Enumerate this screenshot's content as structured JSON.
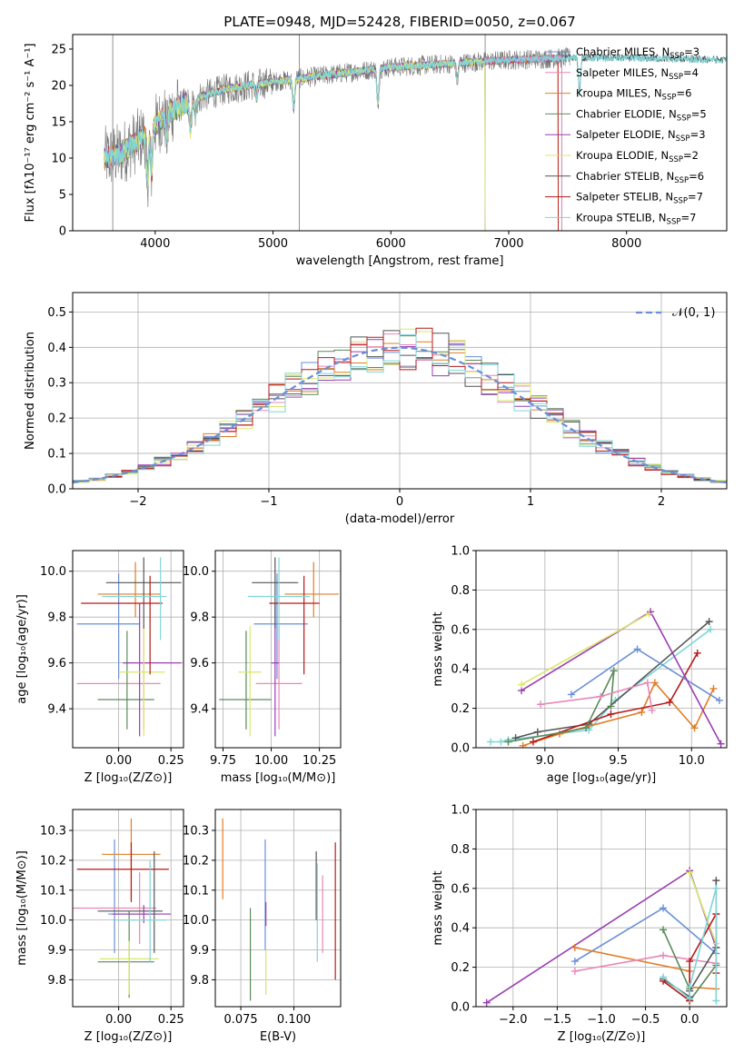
{
  "figure_title": "PLATE=0948, MJD=52428, FIBERID=0050, z=0.067",
  "colors": {
    "chabrier_miles": "#6a8fd8",
    "salpeter_miles": "#e887b8",
    "kroupa_miles": "#e27c24",
    "chabrier_elodie": "#5a8a5a",
    "salpeter_elodie": "#9b3cb2",
    "kroupa_elodie": "#d8e86a",
    "chabrier_stelib": "#555555",
    "salpeter_stelib": "#b81818",
    "kroupa_stelib": "#7fd5d8",
    "data": "#777777",
    "normal": "#6a8fd8"
  },
  "chart_data": [
    {
      "id": "spectrum",
      "type": "line",
      "xlabel": "wavelength [Angstrom, rest frame]",
      "ylabel": "Flux [fλ10⁻¹⁷ erg cm⁻² s⁻¹ A⁻¹]",
      "xlim": [
        3300,
        8850
      ],
      "ylim": [
        0,
        27
      ],
      "xticks": [
        4000,
        5000,
        6000,
        7000,
        8000
      ],
      "yticks": [
        0,
        5,
        10,
        15,
        20,
        25
      ],
      "legend_position": "right",
      "legend": [
        {
          "label": "Chabrier MILES, N",
          "n": "3",
          "color": "chabrier_miles"
        },
        {
          "label": "Salpeter MILES, N",
          "n": "4",
          "color": "salpeter_miles"
        },
        {
          "label": "Kroupa MILES, N",
          "n": "6",
          "color": "kroupa_miles"
        },
        {
          "label": "Chabrier ELODIE, N",
          "n": "5",
          "color": "chabrier_elodie"
        },
        {
          "label": "Salpeter ELODIE, N",
          "n": "3",
          "color": "salpeter_elodie"
        },
        {
          "label": "Kroupa ELODIE, N",
          "n": "2",
          "color": "kroupa_elodie"
        },
        {
          "label": "Chabrier STELIB, N",
          "n": "6",
          "color": "chabrier_stelib"
        },
        {
          "label": "Salpeter STELIB, N",
          "n": "7",
          "color": "salpeter_stelib"
        },
        {
          "label": "Kroupa STELIB, N",
          "n": "7",
          "color": "kroupa_stelib"
        }
      ],
      "legend_sub": "SSP",
      "continuum": [
        [
          3570,
          10
        ],
        [
          3700,
          10.5
        ],
        [
          3900,
          13
        ],
        [
          4100,
          16
        ],
        [
          4300,
          18
        ],
        [
          4600,
          19.5
        ],
        [
          5000,
          20.5
        ],
        [
          5500,
          21.5
        ],
        [
          6000,
          22.5
        ],
        [
          6500,
          23
        ],
        [
          7000,
          23.5
        ],
        [
          7500,
          23.8
        ],
        [
          8000,
          23.8
        ],
        [
          8850,
          23.5
        ]
      ],
      "models_end": {
        "chabrier_miles": 7450,
        "salpeter_miles": 7450,
        "kroupa_miles": 7420,
        "chabrier_elodie": 6800,
        "salpeter_elodie": 6800,
        "kroupa_elodie": 6800,
        "chabrier_stelib": 8850,
        "salpeter_stelib": 7420,
        "kroupa_stelib": 8850
      }
    },
    {
      "id": "residuals",
      "type": "step",
      "xlabel": "(data-model)/error",
      "ylabel": "Normed distribution",
      "xlim": [
        -2.5,
        2.5
      ],
      "ylim": [
        0,
        0.555
      ],
      "xticks": [
        -2,
        -1,
        0,
        1,
        2
      ],
      "yticks": [
        0.0,
        0.1,
        0.2,
        0.3,
        0.4,
        0.5
      ],
      "legend": "𝒩(0, 1)",
      "legend_position": "top-right",
      "normal": {
        "mean": 0,
        "sigma": 1
      }
    },
    {
      "id": "age_vs_Z",
      "type": "errorbar",
      "xlabel": "Z [log₁₀(Z/Z⊙)]",
      "ylabel": "age  [log₁₀(age/yr)]",
      "xlim": [
        -0.22,
        0.31
      ],
      "ylim": [
        9.23,
        10.09
      ],
      "xticks": [
        0.0,
        0.25
      ],
      "yticks": [
        9.4,
        9.6,
        9.8,
        10.0
      ],
      "points": [
        {
          "s": "chabrier_miles",
          "x": 0.0,
          "xerr": [
            0.2,
            0.1
          ],
          "y": 9.77,
          "yerr": [
            0.24,
            0.22
          ]
        },
        {
          "s": "salpeter_miles",
          "x": 0.12,
          "xerr": [
            0.32,
            0.08
          ],
          "y": 9.51,
          "yerr": [
            0.2,
            0.25
          ]
        },
        {
          "s": "kroupa_miles",
          "x": 0.08,
          "xerr": [
            0.18,
            0.12
          ],
          "y": 9.9,
          "yerr": [
            0.1,
            0.14
          ]
        },
        {
          "s": "chabrier_elodie",
          "x": 0.04,
          "xerr": [
            0.14,
            0.13
          ],
          "y": 9.44,
          "yerr": [
            0.13,
            0.3
          ]
        },
        {
          "s": "salpeter_elodie",
          "x": 0.1,
          "xerr": [
            0.08,
            0.2
          ],
          "y": 9.6,
          "yerr": [
            0.32,
            0.26
          ]
        },
        {
          "s": "kroupa_elodie",
          "x": 0.12,
          "xerr": [
            0.12,
            0.1
          ],
          "y": 9.56,
          "yerr": [
            0.28,
            0.2
          ]
        },
        {
          "s": "chabrier_stelib",
          "x": 0.12,
          "xerr": [
            0.18,
            0.18
          ],
          "y": 9.95,
          "yerr": [
            0.2,
            0.11
          ]
        },
        {
          "s": "salpeter_stelib",
          "x": 0.15,
          "xerr": [
            0.33,
            0.06
          ],
          "y": 9.86,
          "yerr": [
            0.31,
            0.12
          ]
        },
        {
          "s": "kroupa_stelib",
          "x": 0.2,
          "xerr": [
            0.28,
            0.03
          ],
          "y": 9.89,
          "yerr": [
            0.19,
            0.17
          ]
        }
      ]
    },
    {
      "id": "age_vs_mass",
      "type": "errorbar",
      "xlabel": "mass [log₁₀(M/M⊙)]",
      "ylabel": "",
      "xlim": [
        9.71,
        10.36
      ],
      "ylim": [
        9.23,
        10.09
      ],
      "xticks": [
        9.75,
        10.0,
        10.25
      ],
      "yticks": [
        9.4,
        9.6,
        9.8,
        10.0
      ],
      "points": [
        {
          "s": "chabrier_miles",
          "x": 10.03,
          "xerr": [
            0.12,
            0.16
          ],
          "y": 9.77,
          "yerr": [
            0.24,
            0.22
          ]
        },
        {
          "s": "salpeter_miles",
          "x": 10.04,
          "xerr": [
            0.12,
            0.12
          ],
          "y": 9.51,
          "yerr": [
            0.2,
            0.25
          ]
        },
        {
          "s": "kroupa_miles",
          "x": 10.22,
          "xerr": [
            0.15,
            0.13
          ],
          "y": 9.9,
          "yerr": [
            0.1,
            0.14
          ]
        },
        {
          "s": "chabrier_elodie",
          "x": 9.87,
          "xerr": [
            0.14,
            0.13
          ],
          "y": 9.44,
          "yerr": [
            0.13,
            0.3
          ]
        },
        {
          "s": "salpeter_elodie",
          "x": 10.02,
          "xerr": [
            0.02,
            0.02
          ],
          "y": 9.6,
          "yerr": [
            0.32,
            0.26
          ]
        },
        {
          "s": "kroupa_elodie",
          "x": 9.89,
          "xerr": [
            0.06,
            0.06
          ],
          "y": 9.56,
          "yerr": [
            0.28,
            0.2
          ]
        },
        {
          "s": "chabrier_stelib",
          "x": 10.02,
          "xerr": [
            0.12,
            0.12
          ],
          "y": 9.95,
          "yerr": [
            0.2,
            0.11
          ]
        },
        {
          "s": "salpeter_stelib",
          "x": 10.17,
          "xerr": [
            0.18,
            0.08
          ],
          "y": 9.86,
          "yerr": [
            0.31,
            0.12
          ]
        },
        {
          "s": "kroupa_stelib",
          "x": 10.04,
          "xerr": [
            0.16,
            0.16
          ],
          "y": 9.89,
          "yerr": [
            0.19,
            0.17
          ]
        }
      ]
    },
    {
      "id": "weight_vs_age",
      "type": "line",
      "xlabel": "age  [log₁₀(age/yr)]",
      "ylabel": "mass weight",
      "xlim": [
        8.53,
        10.24
      ],
      "ylim": [
        0.0,
        1.0
      ],
      "xticks": [
        9.0,
        9.5,
        10.0
      ],
      "yticks": [
        0.0,
        0.2,
        0.4,
        0.6,
        0.8,
        1.0
      ],
      "series": [
        {
          "s": "kroupa_stelib",
          "x": [
            8.63,
            8.7,
            8.75,
            9.3,
            9.48,
            10.13
          ],
          "y": [
            0.03,
            0.03,
            0.04,
            0.09,
            0.24,
            0.6
          ]
        },
        {
          "s": "chabrier_stelib",
          "x": [
            8.8,
            8.95,
            9.3,
            10.12
          ],
          "y": [
            0.05,
            0.08,
            0.12,
            0.64
          ]
        },
        {
          "s": "kroupa_miles",
          "x": [
            8.85,
            9.1,
            9.66,
            9.75,
            10.02,
            10.15
          ],
          "y": [
            0.01,
            0.07,
            0.18,
            0.33,
            0.1,
            0.3
          ]
        },
        {
          "s": "salpeter_stelib",
          "x": [
            8.92,
            9.45,
            9.85,
            10.04
          ],
          "y": [
            0.03,
            0.17,
            0.23,
            0.48
          ]
        },
        {
          "s": "chabrier_elodie",
          "x": [
            8.75,
            9.28,
            9.47,
            9.45
          ],
          "y": [
            0.03,
            0.1,
            0.39,
            0.21
          ]
        },
        {
          "s": "chabrier_miles",
          "x": [
            9.18,
            9.63,
            10.19
          ],
          "y": [
            0.27,
            0.5,
            0.24
          ]
        },
        {
          "s": "salpeter_miles",
          "x": [
            8.97,
            9.38,
            9.7,
            9.73
          ],
          "y": [
            0.22,
            0.26,
            0.33,
            0.19
          ]
        },
        {
          "s": "salpeter_elodie",
          "x": [
            8.84,
            9.72,
            10.2
          ],
          "y": [
            0.29,
            0.69,
            0.02
          ]
        },
        {
          "s": "kroupa_elodie",
          "x": [
            8.84,
            9.71
          ],
          "y": [
            0.32,
            0.68
          ]
        }
      ]
    },
    {
      "id": "mass_vs_Z",
      "type": "errorbar",
      "xlabel": "Z [log₁₀(Z/Z⊙)]",
      "ylabel": "mass [log₁₀(M/M⊙)]",
      "xlim": [
        -0.22,
        0.31
      ],
      "ylim": [
        9.71,
        10.37
      ],
      "xticks": [
        0.0,
        0.25
      ],
      "yticks": [
        9.8,
        9.9,
        10.0,
        10.1,
        10.2,
        10.3
      ],
      "points": [
        {
          "s": "chabrier_miles",
          "x": -0.02,
          "xerr": [
            0.03,
            0.2
          ],
          "y": 10.02,
          "yerr": [
            0.13,
            0.25
          ]
        },
        {
          "s": "salpeter_miles",
          "x": 0.1,
          "xerr": [
            0.32,
            0.08
          ],
          "y": 10.04,
          "yerr": [
            0.12,
            0.12
          ]
        },
        {
          "s": "kroupa_miles",
          "x": 0.06,
          "xerr": [
            0.14,
            0.14
          ],
          "y": 10.22,
          "yerr": [
            0.15,
            0.12
          ]
        },
        {
          "s": "chabrier_elodie",
          "x": 0.05,
          "xerr": [
            0.15,
            0.12
          ],
          "y": 9.86,
          "yerr": [
            0.12,
            0.17
          ]
        },
        {
          "s": "salpeter_elodie",
          "x": 0.12,
          "xerr": [
            0.15,
            0.13
          ],
          "y": 10.02,
          "yerr": [
            0.03,
            0.03
          ]
        },
        {
          "s": "kroupa_elodie",
          "x": 0.05,
          "xerr": [
            0.14,
            0.14
          ],
          "y": 9.87,
          "yerr": [
            0.12,
            0.06
          ]
        },
        {
          "s": "chabrier_stelib",
          "x": 0.17,
          "xerr": [
            0.27,
            0.04
          ],
          "y": 10.03,
          "yerr": [
            0.14,
            0.2
          ]
        },
        {
          "s": "salpeter_stelib",
          "x": 0.06,
          "xerr": [
            0.26,
            0.18
          ],
          "y": 10.17,
          "yerr": [
            0.11,
            0.09
          ]
        },
        {
          "s": "kroupa_stelib",
          "x": 0.15,
          "xerr": [
            0.16,
            0.08
          ],
          "y": 10.0,
          "yerr": [
            0.14,
            0.2
          ]
        }
      ]
    },
    {
      "id": "mass_vs_ebv",
      "type": "errorbar",
      "xlabel": "E(B-V)",
      "ylabel": "",
      "xlim": [
        0.063,
        0.122
      ],
      "ylim": [
        9.71,
        10.37
      ],
      "xticks": [
        0.075,
        0.1
      ],
      "yticks": [
        9.8,
        9.9,
        10.0,
        10.1,
        10.2,
        10.3
      ],
      "points": [
        {
          "s": "kroupa_miles",
          "x": 0.0665,
          "xerr": [
            0,
            0
          ],
          "y": 10.2,
          "yerr": [
            0.13,
            0.14
          ]
        },
        {
          "s": "chabrier_elodie",
          "x": 0.0795,
          "xerr": [
            0,
            0
          ],
          "y": 9.89,
          "yerr": [
            0.16,
            0.15
          ]
        },
        {
          "s": "chabrier_miles",
          "x": 0.0865,
          "xerr": [
            0,
            0
          ],
          "y": 10.03,
          "yerr": [
            0.13,
            0.24
          ]
        },
        {
          "s": "salpeter_elodie",
          "x": 0.0868,
          "xerr": [
            0,
            0
          ],
          "y": 10.02,
          "yerr": [
            0.04,
            0.04
          ]
        },
        {
          "s": "kroupa_elodie",
          "x": 0.0868,
          "xerr": [
            0,
            0
          ],
          "y": 9.85,
          "yerr": [
            0.1,
            0.05
          ]
        },
        {
          "s": "chabrier_stelib",
          "x": 0.1105,
          "xerr": [
            0,
            0
          ],
          "y": 10.1,
          "yerr": [
            0.1,
            0.13
          ]
        },
        {
          "s": "kroupa_stelib",
          "x": 0.111,
          "xerr": [
            0,
            0
          ],
          "y": 10.0,
          "yerr": [
            0.14,
            0.19
          ]
        },
        {
          "s": "salpeter_miles",
          "x": 0.1135,
          "xerr": [
            0,
            0
          ],
          "y": 10.02,
          "yerr": [
            0.13,
            0.13
          ]
        },
        {
          "s": "salpeter_stelib",
          "x": 0.1195,
          "xerr": [
            0,
            0
          ],
          "y": 10.02,
          "yerr": [
            0.22,
            0.24
          ]
        }
      ]
    },
    {
      "id": "weight_vs_Z",
      "type": "line",
      "xlabel": "Z [log₁₀(Z/Z⊙)]",
      "ylabel": "mass weight",
      "xlim": [
        -2.42,
        0.42
      ],
      "ylim": [
        0.0,
        1.0
      ],
      "xticks": [
        -2.0,
        -1.5,
        -1.0,
        -0.5,
        0.0
      ],
      "yticks": [
        0.0,
        0.2,
        0.4,
        0.6,
        0.8,
        1.0
      ],
      "series": [
        {
          "s": "salpeter_elodie",
          "x": [
            -2.3,
            0.0,
            0.3
          ],
          "y": [
            0.02,
            0.69,
            0.3
          ]
        },
        {
          "s": "chabrier_miles",
          "x": [
            -1.3,
            -0.3,
            0.3
          ],
          "y": [
            0.23,
            0.5,
            0.27
          ]
        },
        {
          "s": "kroupa_miles",
          "x": [
            -1.3,
            0.0,
            0.0,
            0.3
          ],
          "y": [
            0.3,
            0.18,
            0.1,
            0.09
          ]
        },
        {
          "s": "salpeter_miles",
          "x": [
            -1.3,
            -0.3,
            0.3
          ],
          "y": [
            0.18,
            0.26,
            0.22
          ]
        },
        {
          "s": "chabrier_elodie",
          "x": [
            -0.3,
            0.0,
            0.0,
            0.3
          ],
          "y": [
            0.39,
            0.09,
            0.03,
            0.21
          ]
        },
        {
          "s": "kroupa_elodie",
          "x": [
            0.0,
            0.3
          ],
          "y": [
            0.68,
            0.32
          ]
        },
        {
          "s": "chabrier_stelib",
          "x": [
            -0.3,
            0.0,
            0.0,
            0.3,
            0.3
          ],
          "y": [
            0.14,
            0.05,
            0.08,
            0.3,
            0.64
          ]
        },
        {
          "s": "salpeter_stelib",
          "x": [
            -0.3,
            0.0,
            0.0,
            0.3,
            0.3
          ],
          "y": [
            0.13,
            0.03,
            0.23,
            0.47,
            0.17
          ]
        },
        {
          "s": "kroupa_stelib",
          "x": [
            -0.3,
            0.0,
            0.0,
            0.3,
            0.3
          ],
          "y": [
            0.15,
            0.04,
            0.1,
            0.6,
            0.03
          ]
        }
      ]
    }
  ]
}
